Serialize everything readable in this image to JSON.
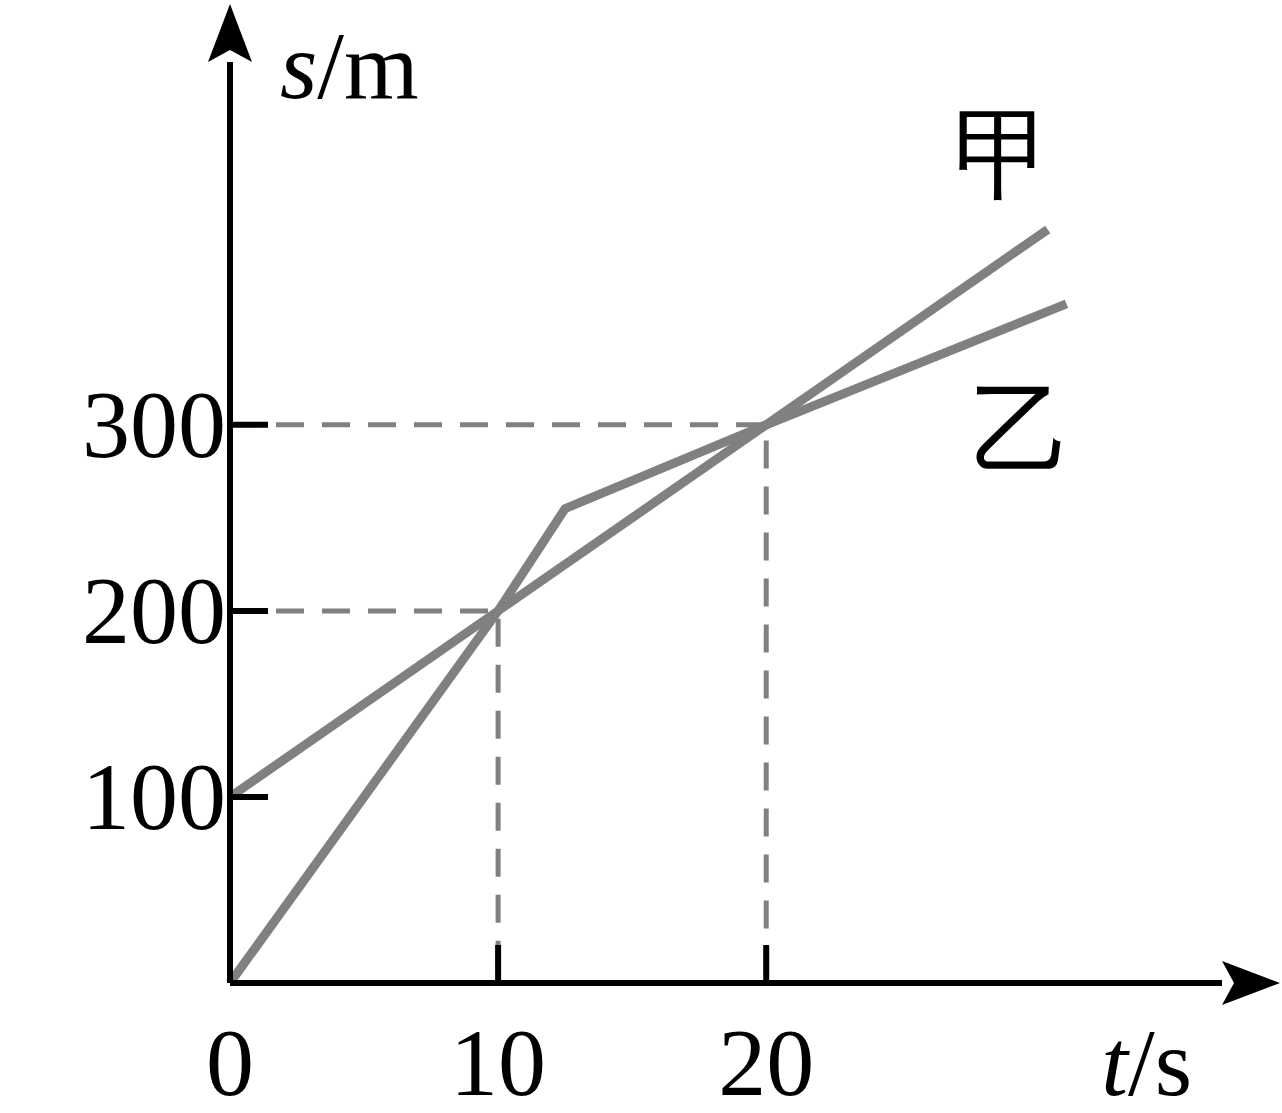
{
  "chart_data": {
    "type": "line",
    "xlabel": "*t*/s",
    "ylabel": "*s*/m",
    "xlim": [
      0,
      37
    ],
    "ylim": [
      0,
      495
    ],
    "xticks": [
      0,
      10,
      20
    ],
    "yticks": [
      100,
      200,
      300
    ],
    "marker": "none",
    "series": [
      {
        "name": "甲",
        "color": "#808080",
        "x": [
          0,
          10,
          20,
          30.5
        ],
        "values": [
          100,
          200,
          300,
          405
        ]
      },
      {
        "name": "乙",
        "color": "#808080",
        "x": [
          0,
          10,
          12.5,
          20,
          31.2
        ],
        "values": [
          0,
          200,
          255,
          300,
          365
        ]
      },
      {
        "color": "#808080",
        "line_style": "dashed",
        "x": [
          0,
          10,
          10
        ],
        "values": [
          200,
          200,
          0
        ]
      },
      {
        "color": "#808080",
        "line_style": "dashed",
        "x": [
          0,
          20,
          20
        ],
        "values": [
          300,
          300,
          0
        ]
      }
    ]
  }
}
